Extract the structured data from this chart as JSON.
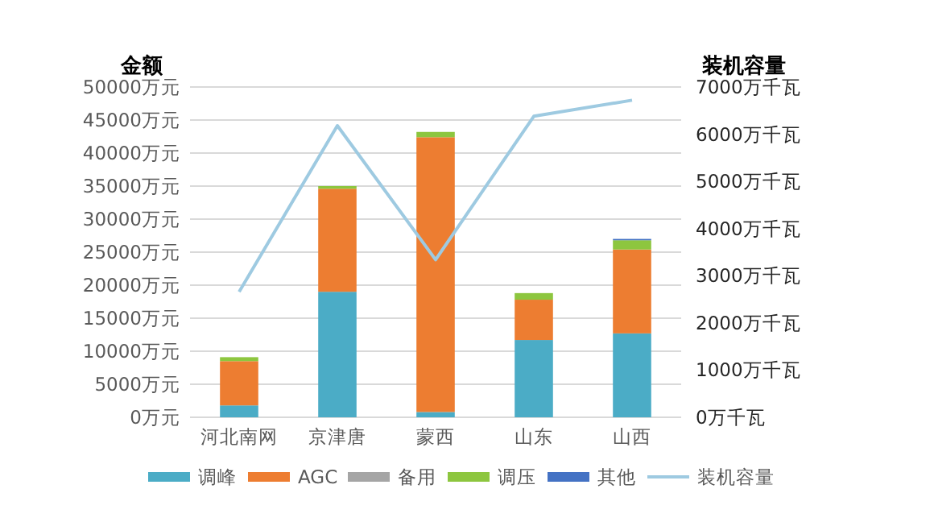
{
  "chart_data": {
    "type": "bar",
    "stacked": true,
    "ylabel": "金额",
    "y2label": "装机容量",
    "categories": [
      "河北南网",
      "京津唐",
      "蒙西",
      "山东",
      "山西"
    ],
    "series": [
      {
        "name": "调峰",
        "color": "#4bacc6",
        "values": [
          1800,
          19000,
          800,
          11700,
          12700
        ]
      },
      {
        "name": "AGC",
        "color": "#ed7d31",
        "values": [
          6700,
          15600,
          41600,
          6100,
          12700
        ]
      },
      {
        "name": "备用",
        "color": "#a5a5a5",
        "values": [
          null,
          null,
          null,
          null,
          null
        ]
      },
      {
        "name": "调压",
        "color": "#8dc63f",
        "values": [
          600,
          400,
          800,
          1000,
          1400
        ]
      },
      {
        "name": "其他",
        "color": "#4472c4",
        "values": [
          null,
          null,
          null,
          null,
          200
        ]
      },
      {
        "name": "装机容量",
        "type": "line",
        "axis": "y2",
        "color": "#9ecae1",
        "values": [
          2660,
          6180,
          3340,
          6380,
          6720
        ]
      }
    ],
    "ylim": [
      0,
      50000
    ],
    "yticks": [
      {
        "value": 0,
        "label": "0万元"
      },
      {
        "value": 5000,
        "label": "5000万元"
      },
      {
        "value": 10000,
        "label": "10000万元"
      },
      {
        "value": 15000,
        "label": "15000万元"
      },
      {
        "value": 20000,
        "label": "20000万元"
      },
      {
        "value": 25000,
        "label": "25000万元"
      },
      {
        "value": 30000,
        "label": "30000万元"
      },
      {
        "value": 35000,
        "label": "35000万元"
      },
      {
        "value": 40000,
        "label": "40000万元"
      },
      {
        "value": 45000,
        "label": "45000万元"
      },
      {
        "value": 50000,
        "label": "50000万元"
      }
    ],
    "y2lim": [
      0,
      7000
    ],
    "y2ticks": [
      {
        "value": 0,
        "label": "0万千瓦"
      },
      {
        "value": 1000,
        "label": "1000万千瓦"
      },
      {
        "value": 2000,
        "label": "2000万千瓦"
      },
      {
        "value": 3000,
        "label": "3000万千瓦"
      },
      {
        "value": 4000,
        "label": "4000万千瓦"
      },
      {
        "value": 5000,
        "label": "5000万千瓦"
      },
      {
        "value": 6000,
        "label": "6000万千瓦"
      },
      {
        "value": 7000,
        "label": "7000万千瓦"
      }
    ],
    "grid": "y",
    "legend": "bottom"
  }
}
